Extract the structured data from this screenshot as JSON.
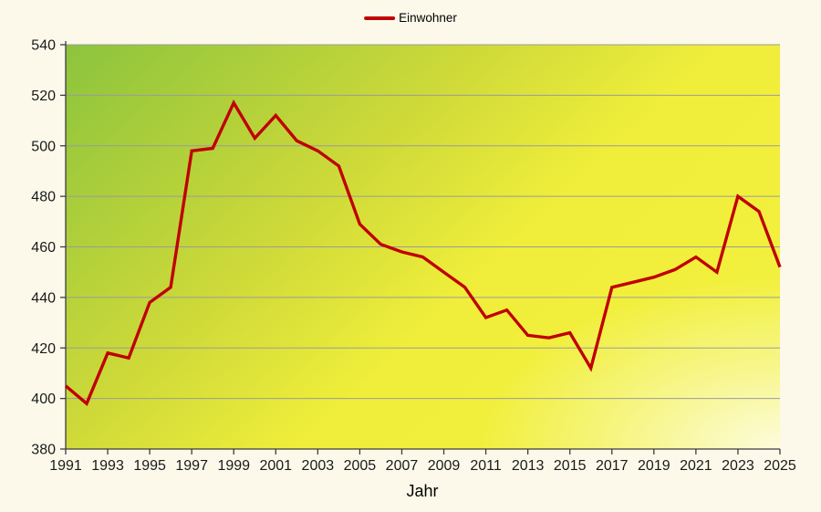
{
  "page": {
    "background": "#fcf9eb"
  },
  "legend": {
    "label": "Einwohner",
    "swatch_color": "#c00000"
  },
  "chart_data": {
    "type": "line",
    "title": "",
    "xlabel": "Jahr",
    "ylabel": "",
    "x": [
      1991,
      1992,
      1993,
      1994,
      1995,
      1996,
      1997,
      1998,
      1999,
      2000,
      2001,
      2002,
      2003,
      2004,
      2005,
      2006,
      2007,
      2008,
      2009,
      2010,
      2011,
      2012,
      2013,
      2014,
      2015,
      2016,
      2017,
      2018,
      2019,
      2020,
      2021,
      2022,
      2023,
      2024,
      2025
    ],
    "series": [
      {
        "name": "Einwohner",
        "color": "#c00000",
        "values": [
          405,
          398,
          418,
          416,
          438,
          444,
          498,
          499,
          517,
          503,
          512,
          502,
          498,
          492,
          469,
          461,
          458,
          456,
          450,
          444,
          432,
          435,
          425,
          424,
          426,
          412,
          444,
          446,
          448,
          451,
          456,
          450,
          480,
          474,
          452
        ]
      }
    ],
    "ylim": [
      380,
      540
    ],
    "ytick_step": 20,
    "ytick_labels": [
      380,
      400,
      420,
      440,
      460,
      480,
      500,
      520,
      540
    ],
    "xtick_labels": [
      1991,
      1993,
      1995,
      1997,
      1999,
      2001,
      2003,
      2005,
      2007,
      2009,
      2011,
      2013,
      2015,
      2017,
      2019,
      2021,
      2023,
      2025
    ],
    "grid": true,
    "legend_position": "top-center",
    "plot_background": {
      "type": "gradient",
      "colors": [
        "#8cc43d",
        "#cdd939",
        "#f0ee3a",
        "#f2f03e"
      ],
      "corner_glow": "#ffffff"
    },
    "gridline_color": "#9b9b9b",
    "axis_color": "#3c3c3c",
    "tick_label_color": "#1a1a1a"
  }
}
